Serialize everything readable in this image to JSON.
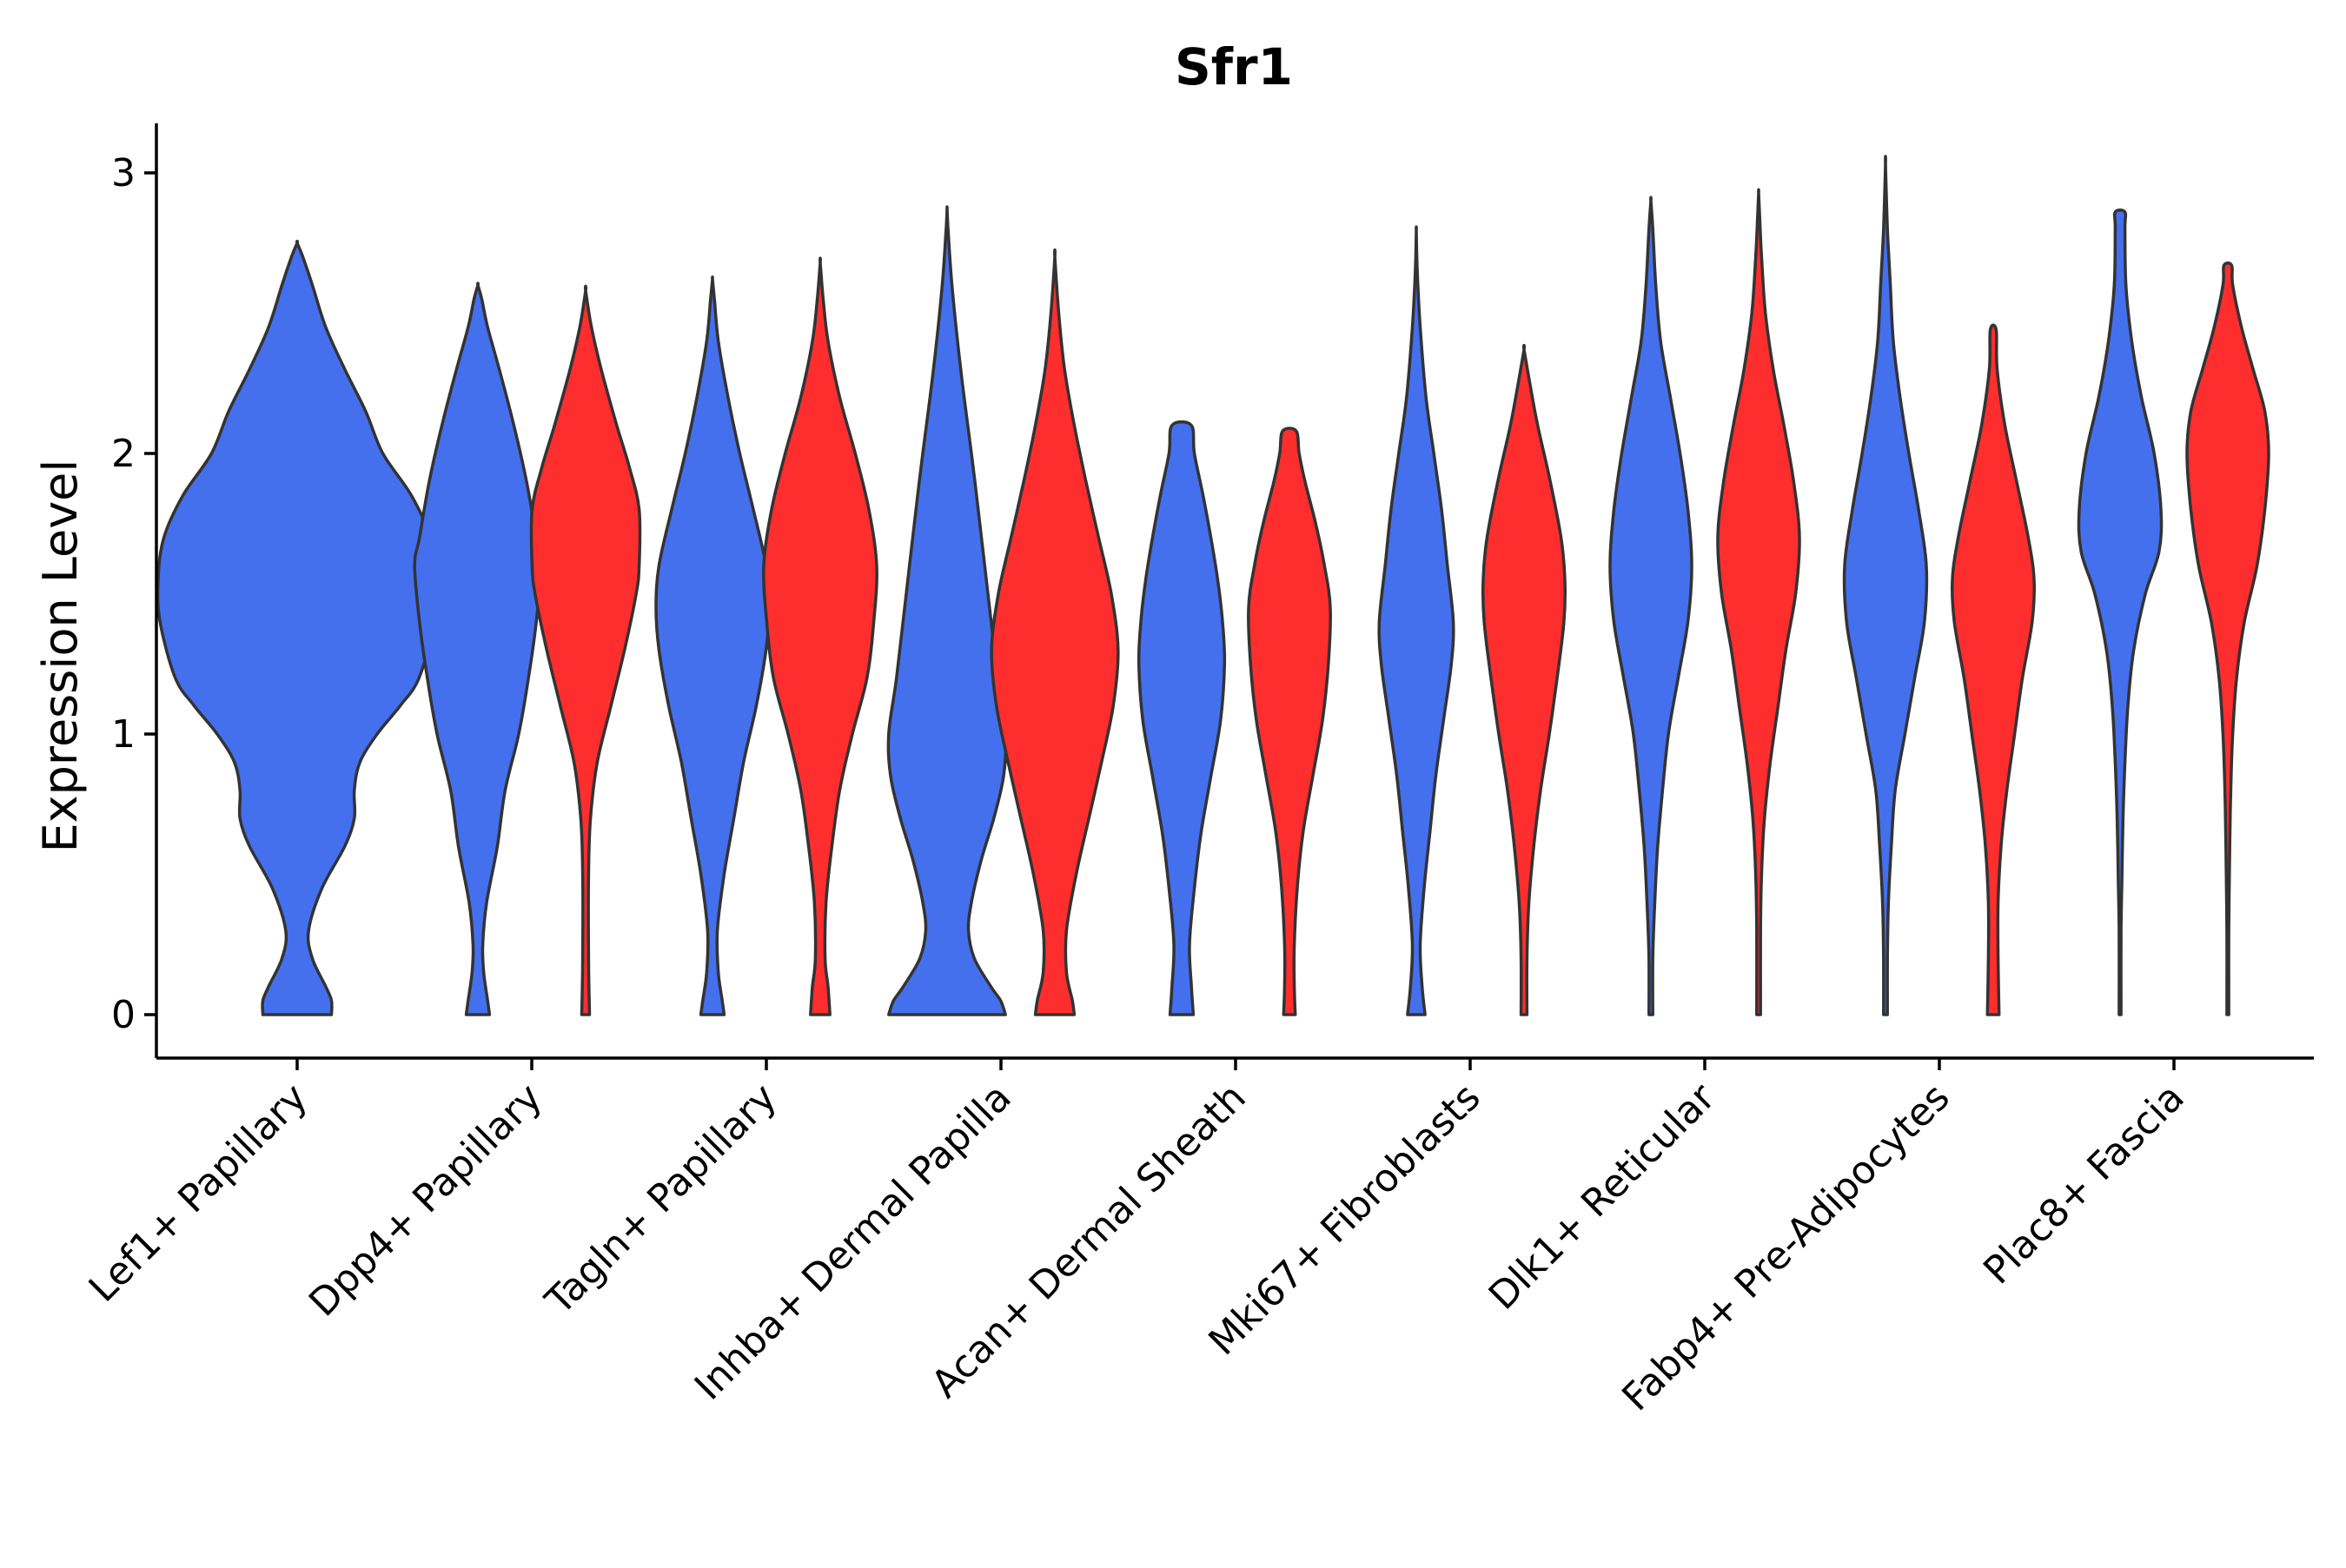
{
  "chart_data": {
    "type": "violin",
    "title": "Sfr1",
    "xlabel": "",
    "ylabel": "Expression Level",
    "ylim": [
      -0.15,
      3.2
    ],
    "yticks": [
      0,
      1,
      2,
      3
    ],
    "grid": false,
    "legend": "none",
    "series_colors": [
      "#4470EE",
      "#FF2E2E"
    ],
    "categories": [
      "Lef1+ Papillary",
      "Dpp4+ Papillary",
      "Tagln+ Papillary",
      "Inhba+ Dermal Papilla",
      "Acan+ Dermal Sheath",
      "Mki67+ Fibroblasts",
      "Dlk1+ Reticular",
      "Fabp4+ Pre-Adipocytes",
      "Plac8+ Fascia"
    ],
    "violins": [
      {
        "category": 0,
        "series": 0,
        "max": 2.75,
        "profile": [
          [
            0,
            0.18
          ],
          [
            0.05,
            0.18
          ],
          [
            0.1,
            0.15
          ],
          [
            0.2,
            0.08
          ],
          [
            0.3,
            0.06
          ],
          [
            0.45,
            0.13
          ],
          [
            0.6,
            0.25
          ],
          [
            0.7,
            0.3
          ],
          [
            0.8,
            0.3
          ],
          [
            0.9,
            0.33
          ],
          [
            1.0,
            0.42
          ],
          [
            1.1,
            0.54
          ],
          [
            1.2,
            0.64
          ],
          [
            1.4,
            0.72
          ],
          [
            1.55,
            0.73
          ],
          [
            1.7,
            0.7
          ],
          [
            1.85,
            0.6
          ],
          [
            2.0,
            0.45
          ],
          [
            2.15,
            0.36
          ],
          [
            2.3,
            0.25
          ],
          [
            2.45,
            0.15
          ],
          [
            2.6,
            0.08
          ],
          [
            2.7,
            0.03
          ],
          [
            2.75,
            0
          ]
        ]
      },
      {
        "category": 1,
        "series": 0,
        "max": 2.6,
        "profile": [
          [
            0,
            0.12
          ],
          [
            0.05,
            0.1
          ],
          [
            0.15,
            0.06
          ],
          [
            0.25,
            0.05
          ],
          [
            0.4,
            0.09
          ],
          [
            0.6,
            0.2
          ],
          [
            0.8,
            0.28
          ],
          [
            1.0,
            0.42
          ],
          [
            1.2,
            0.52
          ],
          [
            1.4,
            0.6
          ],
          [
            1.6,
            0.65
          ],
          [
            1.7,
            0.6
          ],
          [
            1.9,
            0.5
          ],
          [
            2.1,
            0.37
          ],
          [
            2.3,
            0.22
          ],
          [
            2.45,
            0.1
          ],
          [
            2.55,
            0.04
          ],
          [
            2.6,
            0
          ]
        ]
      },
      {
        "category": 1,
        "series": 1,
        "max": 2.58,
        "profile": [
          [
            0,
            0.04
          ],
          [
            0.2,
            0.03
          ],
          [
            0.5,
            0.03
          ],
          [
            0.7,
            0.05
          ],
          [
            0.9,
            0.12
          ],
          [
            1.1,
            0.26
          ],
          [
            1.3,
            0.4
          ],
          [
            1.5,
            0.52
          ],
          [
            1.6,
            0.55
          ],
          [
            1.8,
            0.55
          ],
          [
            1.95,
            0.45
          ],
          [
            2.1,
            0.32
          ],
          [
            2.3,
            0.16
          ],
          [
            2.45,
            0.06
          ],
          [
            2.58,
            0
          ]
        ]
      },
      {
        "category": 2,
        "series": 0,
        "max": 2.62,
        "profile": [
          [
            0,
            0.12
          ],
          [
            0.05,
            0.1
          ],
          [
            0.15,
            0.06
          ],
          [
            0.3,
            0.05
          ],
          [
            0.5,
            0.12
          ],
          [
            0.7,
            0.22
          ],
          [
            0.9,
            0.32
          ],
          [
            1.1,
            0.45
          ],
          [
            1.3,
            0.55
          ],
          [
            1.45,
            0.58
          ],
          [
            1.6,
            0.55
          ],
          [
            1.8,
            0.42
          ],
          [
            2.0,
            0.28
          ],
          [
            2.2,
            0.16
          ],
          [
            2.4,
            0.06
          ],
          [
            2.55,
            0.02
          ],
          [
            2.62,
            0
          ]
        ]
      },
      {
        "category": 2,
        "series": 1,
        "max": 2.68,
        "profile": [
          [
            0,
            0.1
          ],
          [
            0.1,
            0.08
          ],
          [
            0.2,
            0.05
          ],
          [
            0.4,
            0.06
          ],
          [
            0.6,
            0.12
          ],
          [
            0.8,
            0.2
          ],
          [
            1.0,
            0.33
          ],
          [
            1.2,
            0.48
          ],
          [
            1.4,
            0.55
          ],
          [
            1.6,
            0.58
          ],
          [
            1.8,
            0.5
          ],
          [
            2.0,
            0.36
          ],
          [
            2.2,
            0.2
          ],
          [
            2.4,
            0.08
          ],
          [
            2.55,
            0.03
          ],
          [
            2.68,
            0
          ]
        ]
      },
      {
        "category": 3,
        "series": 0,
        "max": 2.87,
        "profile": [
          [
            0,
            0.6
          ],
          [
            0.05,
            0.55
          ],
          [
            0.1,
            0.45
          ],
          [
            0.2,
            0.28
          ],
          [
            0.3,
            0.22
          ],
          [
            0.4,
            0.25
          ],
          [
            0.55,
            0.35
          ],
          [
            0.7,
            0.48
          ],
          [
            0.85,
            0.58
          ],
          [
            1.0,
            0.6
          ],
          [
            1.2,
            0.52
          ],
          [
            1.5,
            0.42
          ],
          [
            1.8,
            0.32
          ],
          [
            2.0,
            0.25
          ],
          [
            2.3,
            0.14
          ],
          [
            2.6,
            0.05
          ],
          [
            2.8,
            0.01
          ],
          [
            2.87,
            0
          ]
        ]
      },
      {
        "category": 3,
        "series": 1,
        "max": 2.7,
        "profile": [
          [
            0,
            0.2
          ],
          [
            0.05,
            0.18
          ],
          [
            0.15,
            0.12
          ],
          [
            0.3,
            0.12
          ],
          [
            0.5,
            0.22
          ],
          [
            0.7,
            0.35
          ],
          [
            0.9,
            0.48
          ],
          [
            1.1,
            0.6
          ],
          [
            1.3,
            0.65
          ],
          [
            1.5,
            0.58
          ],
          [
            1.7,
            0.45
          ],
          [
            1.9,
            0.32
          ],
          [
            2.1,
            0.2
          ],
          [
            2.3,
            0.1
          ],
          [
            2.5,
            0.04
          ],
          [
            2.7,
            0
          ]
        ]
      },
      {
        "category": 4,
        "series": 0,
        "max": 2.1,
        "profile": [
          [
            0,
            0.12
          ],
          [
            0.1,
            0.1
          ],
          [
            0.25,
            0.08
          ],
          [
            0.45,
            0.13
          ],
          [
            0.65,
            0.2
          ],
          [
            0.85,
            0.3
          ],
          [
            1.05,
            0.4
          ],
          [
            1.25,
            0.44
          ],
          [
            1.4,
            0.42
          ],
          [
            1.55,
            0.37
          ],
          [
            1.7,
            0.3
          ],
          [
            1.85,
            0.22
          ],
          [
            2.0,
            0.13
          ],
          [
            2.1,
            0.1
          ]
        ]
      },
      {
        "category": 4,
        "series": 1,
        "max": 2.08,
        "profile": [
          [
            0,
            0.06
          ],
          [
            0.1,
            0.05
          ],
          [
            0.25,
            0.05
          ],
          [
            0.45,
            0.08
          ],
          [
            0.65,
            0.14
          ],
          [
            0.85,
            0.24
          ],
          [
            1.05,
            0.34
          ],
          [
            1.25,
            0.4
          ],
          [
            1.45,
            0.42
          ],
          [
            1.6,
            0.36
          ],
          [
            1.75,
            0.27
          ],
          [
            1.9,
            0.16
          ],
          [
            2.0,
            0.1
          ],
          [
            2.08,
            0.07
          ]
        ]
      },
      {
        "category": 5,
        "series": 0,
        "max": 2.79,
        "profile": [
          [
            0,
            0.09
          ],
          [
            0.1,
            0.06
          ],
          [
            0.25,
            0.04
          ],
          [
            0.45,
            0.08
          ],
          [
            0.65,
            0.14
          ],
          [
            0.85,
            0.2
          ],
          [
            1.05,
            0.28
          ],
          [
            1.25,
            0.36
          ],
          [
            1.4,
            0.38
          ],
          [
            1.6,
            0.32
          ],
          [
            1.8,
            0.26
          ],
          [
            2.0,
            0.18
          ],
          [
            2.2,
            0.1
          ],
          [
            2.45,
            0.04
          ],
          [
            2.65,
            0.01
          ],
          [
            2.79,
            0
          ]
        ]
      },
      {
        "category": 5,
        "series": 1,
        "max": 2.37,
        "profile": [
          [
            0,
            0.03
          ],
          [
            0.2,
            0.03
          ],
          [
            0.4,
            0.05
          ],
          [
            0.6,
            0.1
          ],
          [
            0.8,
            0.17
          ],
          [
            1.0,
            0.26
          ],
          [
            1.2,
            0.34
          ],
          [
            1.4,
            0.41
          ],
          [
            1.55,
            0.42
          ],
          [
            1.7,
            0.38
          ],
          [
            1.9,
            0.27
          ],
          [
            2.1,
            0.14
          ],
          [
            2.25,
            0.06
          ],
          [
            2.37,
            0
          ]
        ]
      },
      {
        "category": 6,
        "series": 0,
        "max": 2.9,
        "profile": [
          [
            0,
            0.02
          ],
          [
            0.2,
            0.02
          ],
          [
            0.4,
            0.04
          ],
          [
            0.6,
            0.07
          ],
          [
            0.8,
            0.12
          ],
          [
            1.0,
            0.18
          ],
          [
            1.2,
            0.28
          ],
          [
            1.4,
            0.38
          ],
          [
            1.6,
            0.42
          ],
          [
            1.8,
            0.38
          ],
          [
            2.0,
            0.3
          ],
          [
            2.2,
            0.2
          ],
          [
            2.4,
            0.1
          ],
          [
            2.6,
            0.05
          ],
          [
            2.8,
            0.02
          ],
          [
            2.9,
            0
          ]
        ]
      },
      {
        "category": 6,
        "series": 1,
        "max": 2.93,
        "profile": [
          [
            0,
            0.02
          ],
          [
            0.3,
            0.02
          ],
          [
            0.5,
            0.03
          ],
          [
            0.7,
            0.06
          ],
          [
            0.9,
            0.12
          ],
          [
            1.1,
            0.2
          ],
          [
            1.3,
            0.28
          ],
          [
            1.5,
            0.38
          ],
          [
            1.7,
            0.42
          ],
          [
            1.9,
            0.36
          ],
          [
            2.1,
            0.26
          ],
          [
            2.3,
            0.15
          ],
          [
            2.5,
            0.07
          ],
          [
            2.7,
            0.03
          ],
          [
            2.85,
            0.01
          ],
          [
            2.93,
            0
          ]
        ]
      },
      {
        "category": 7,
        "series": 0,
        "max": 3.03,
        "profile": [
          [
            0,
            0.02
          ],
          [
            0.2,
            0.02
          ],
          [
            0.4,
            0.03
          ],
          [
            0.6,
            0.06
          ],
          [
            0.8,
            0.1
          ],
          [
            1.0,
            0.2
          ],
          [
            1.2,
            0.3
          ],
          [
            1.4,
            0.4
          ],
          [
            1.6,
            0.42
          ],
          [
            1.8,
            0.34
          ],
          [
            2.0,
            0.24
          ],
          [
            2.2,
            0.15
          ],
          [
            2.4,
            0.08
          ],
          [
            2.6,
            0.05
          ],
          [
            2.8,
            0.02
          ],
          [
            3.03,
            0
          ]
        ]
      },
      {
        "category": 7,
        "series": 1,
        "max": 2.44,
        "profile": [
          [
            0,
            0.06
          ],
          [
            0.2,
            0.05
          ],
          [
            0.4,
            0.05
          ],
          [
            0.6,
            0.08
          ],
          [
            0.8,
            0.14
          ],
          [
            1.0,
            0.22
          ],
          [
            1.2,
            0.3
          ],
          [
            1.4,
            0.4
          ],
          [
            1.55,
            0.42
          ],
          [
            1.7,
            0.36
          ],
          [
            1.9,
            0.24
          ],
          [
            2.1,
            0.12
          ],
          [
            2.3,
            0.04
          ],
          [
            2.44,
            0.03
          ]
        ]
      },
      {
        "category": 8,
        "series": 0,
        "max": 2.86,
        "profile": [
          [
            0,
            0.01
          ],
          [
            0.3,
            0.01
          ],
          [
            0.5,
            0.02
          ],
          [
            0.7,
            0.03
          ],
          [
            0.9,
            0.05
          ],
          [
            1.1,
            0.08
          ],
          [
            1.3,
            0.14
          ],
          [
            1.5,
            0.26
          ],
          [
            1.65,
            0.4
          ],
          [
            1.8,
            0.42
          ],
          [
            2.0,
            0.35
          ],
          [
            2.2,
            0.22
          ],
          [
            2.4,
            0.12
          ],
          [
            2.6,
            0.06
          ],
          [
            2.8,
            0.05
          ],
          [
            2.86,
            0.05
          ]
        ]
      },
      {
        "category": 8,
        "series": 1,
        "max": 2.67,
        "profile": [
          [
            0,
            0.01
          ],
          [
            0.3,
            0.01
          ],
          [
            0.6,
            0.02
          ],
          [
            0.8,
            0.03
          ],
          [
            1.0,
            0.05
          ],
          [
            1.2,
            0.09
          ],
          [
            1.4,
            0.17
          ],
          [
            1.6,
            0.3
          ],
          [
            1.8,
            0.38
          ],
          [
            2.0,
            0.42
          ],
          [
            2.15,
            0.38
          ],
          [
            2.3,
            0.26
          ],
          [
            2.45,
            0.14
          ],
          [
            2.6,
            0.05
          ],
          [
            2.67,
            0.04
          ]
        ]
      }
    ]
  }
}
